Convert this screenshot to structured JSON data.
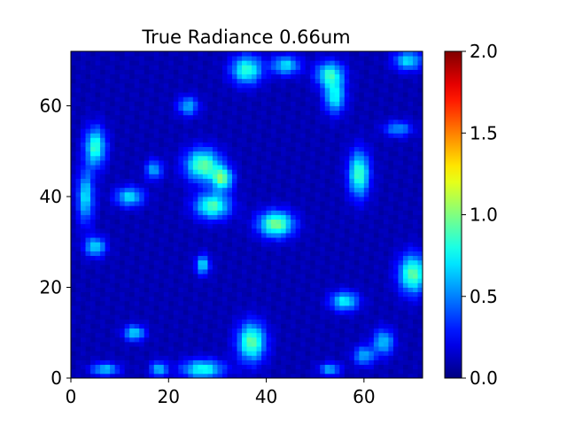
{
  "chart_data": {
    "type": "heatmap",
    "title": "True Radiance 0.66um",
    "xlabel": "",
    "ylabel": "",
    "xlim": [
      0,
      72
    ],
    "ylim": [
      0,
      72
    ],
    "xticks": [
      "0",
      "20",
      "40",
      "60"
    ],
    "yticks": [
      "0",
      "20",
      "40",
      "60"
    ],
    "colorbar": {
      "range": [
        0.0,
        2.0
      ],
      "ticks": [
        "0.0",
        "0.5",
        "1.0",
        "1.5",
        "2.0"
      ],
      "colormap": "jet"
    },
    "grid": false,
    "grid_size": [
      72,
      72
    ],
    "background_value": 0.1,
    "features": [
      {
        "x": 36,
        "y": 68,
        "sx": 2.2,
        "sy": 2.2,
        "v": 0.75
      },
      {
        "x": 44,
        "y": 69,
        "sx": 2.0,
        "sy": 1.5,
        "v": 0.6
      },
      {
        "x": 53,
        "y": 67,
        "sx": 2.0,
        "sy": 2.0,
        "v": 0.7
      },
      {
        "x": 54,
        "y": 62,
        "sx": 1.5,
        "sy": 2.5,
        "v": 0.65
      },
      {
        "x": 69,
        "y": 70,
        "sx": 2.0,
        "sy": 1.5,
        "v": 0.6
      },
      {
        "x": 24,
        "y": 60,
        "sx": 1.5,
        "sy": 1.5,
        "v": 0.5
      },
      {
        "x": 5,
        "y": 51,
        "sx": 1.5,
        "sy": 3.0,
        "v": 0.75
      },
      {
        "x": 27,
        "y": 47,
        "sx": 2.5,
        "sy": 2.5,
        "v": 0.85
      },
      {
        "x": 31,
        "y": 44,
        "sx": 1.5,
        "sy": 1.8,
        "v": 0.8
      },
      {
        "x": 29,
        "y": 38,
        "sx": 2.5,
        "sy": 2.0,
        "v": 0.8
      },
      {
        "x": 59,
        "y": 45,
        "sx": 1.5,
        "sy": 3.5,
        "v": 0.8
      },
      {
        "x": 42,
        "y": 34,
        "sx": 2.5,
        "sy": 2.0,
        "v": 0.9
      },
      {
        "x": 12,
        "y": 40,
        "sx": 2.0,
        "sy": 1.5,
        "v": 0.6
      },
      {
        "x": 3,
        "y": 40,
        "sx": 1.2,
        "sy": 4.0,
        "v": 0.6
      },
      {
        "x": 5,
        "y": 29,
        "sx": 1.5,
        "sy": 1.5,
        "v": 0.6
      },
      {
        "x": 17,
        "y": 46,
        "sx": 1.2,
        "sy": 1.5,
        "v": 0.5
      },
      {
        "x": 27,
        "y": 25,
        "sx": 1.0,
        "sy": 1.5,
        "v": 0.6
      },
      {
        "x": 70,
        "y": 23,
        "sx": 2.0,
        "sy": 3.0,
        "v": 0.85
      },
      {
        "x": 56,
        "y": 17,
        "sx": 2.0,
        "sy": 1.5,
        "v": 0.65
      },
      {
        "x": 13,
        "y": 10,
        "sx": 1.5,
        "sy": 1.2,
        "v": 0.6
      },
      {
        "x": 37,
        "y": 8,
        "sx": 2.0,
        "sy": 3.0,
        "v": 0.85
      },
      {
        "x": 27,
        "y": 2,
        "sx": 3.0,
        "sy": 1.5,
        "v": 0.7
      },
      {
        "x": 7,
        "y": 2,
        "sx": 2.0,
        "sy": 1.0,
        "v": 0.55
      },
      {
        "x": 18,
        "y": 2,
        "sx": 1.2,
        "sy": 1.2,
        "v": 0.55
      },
      {
        "x": 53,
        "y": 2,
        "sx": 1.5,
        "sy": 1.0,
        "v": 0.5
      },
      {
        "x": 64,
        "y": 8,
        "sx": 1.5,
        "sy": 2.0,
        "v": 0.55
      },
      {
        "x": 60,
        "y": 5,
        "sx": 1.5,
        "sy": 1.5,
        "v": 0.5
      },
      {
        "x": 67,
        "y": 55,
        "sx": 2.0,
        "sy": 1.2,
        "v": 0.45
      }
    ]
  }
}
